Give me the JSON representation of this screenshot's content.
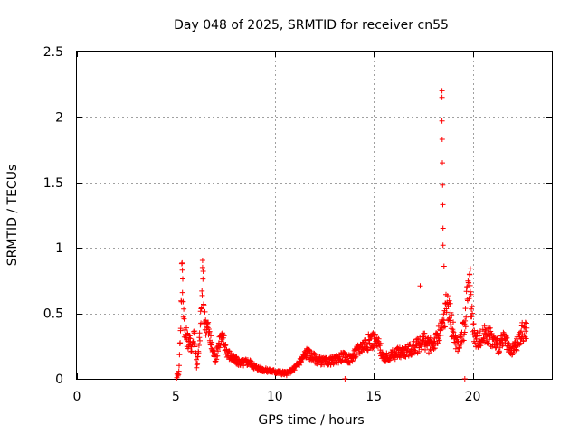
{
  "chart_data": {
    "type": "scatter",
    "title": "Day 048 of 2025, SRMTID for receiver cn55",
    "xlabel": "GPS time / hours",
    "ylabel": "SRMTID / TECUs",
    "xlim": [
      0,
      24
    ],
    "ylim": [
      0,
      2.5
    ],
    "x_ticks": [
      0,
      5,
      10,
      15,
      20
    ],
    "x_tick_labels": [
      "0",
      "5",
      "10",
      "15",
      "20"
    ],
    "y_ticks": [
      0,
      0.5,
      1,
      1.5,
      2,
      2.5
    ],
    "y_tick_labels": [
      "0",
      "0.5",
      "1",
      "1.5",
      "2",
      "2.5"
    ],
    "grid": true,
    "marker": "+",
    "color": "#ff0000",
    "series": [
      {
        "name": "SRMTID",
        "profile": [
          [
            5.05,
            0.02
          ],
          [
            5.15,
            0.05
          ],
          [
            5.25,
            0.45
          ],
          [
            5.3,
            0.8
          ],
          [
            5.35,
            0.7
          ],
          [
            5.45,
            0.35
          ],
          [
            5.6,
            0.3
          ],
          [
            5.8,
            0.25
          ],
          [
            5.95,
            0.35
          ],
          [
            6.05,
            0.1
          ],
          [
            6.15,
            0.2
          ],
          [
            6.3,
            0.55
          ],
          [
            6.35,
            0.8
          ],
          [
            6.45,
            0.45
          ],
          [
            6.6,
            0.4
          ],
          [
            6.8,
            0.25
          ],
          [
            7.0,
            0.15
          ],
          [
            7.2,
            0.3
          ],
          [
            7.4,
            0.3
          ],
          [
            7.6,
            0.2
          ],
          [
            7.9,
            0.15
          ],
          [
            8.3,
            0.12
          ],
          [
            8.7,
            0.13
          ],
          [
            9.0,
            0.09
          ],
          [
            9.4,
            0.07
          ],
          [
            9.8,
            0.06
          ],
          [
            10.2,
            0.05
          ],
          [
            10.6,
            0.04
          ],
          [
            11.0,
            0.08
          ],
          [
            11.3,
            0.14
          ],
          [
            11.6,
            0.2
          ],
          [
            11.9,
            0.17
          ],
          [
            12.2,
            0.14
          ],
          [
            12.6,
            0.13
          ],
          [
            13.0,
            0.14
          ],
          [
            13.4,
            0.17
          ],
          [
            13.8,
            0.15
          ],
          [
            14.1,
            0.2
          ],
          [
            14.4,
            0.25
          ],
          [
            14.7,
            0.28
          ],
          [
            15.0,
            0.3
          ],
          [
            15.3,
            0.25
          ],
          [
            15.5,
            0.15
          ],
          [
            15.9,
            0.18
          ],
          [
            16.3,
            0.2
          ],
          [
            16.8,
            0.22
          ],
          [
            17.2,
            0.25
          ],
          [
            17.5,
            0.3
          ],
          [
            17.8,
            0.25
          ],
          [
            18.2,
            0.3
          ],
          [
            18.5,
            0.4
          ],
          [
            18.7,
            0.6
          ],
          [
            18.9,
            0.45
          ],
          [
            19.1,
            0.3
          ],
          [
            19.3,
            0.25
          ],
          [
            19.6,
            0.4
          ],
          [
            19.8,
            0.75
          ],
          [
            19.9,
            0.6
          ],
          [
            20.1,
            0.3
          ],
          [
            20.4,
            0.3
          ],
          [
            20.7,
            0.35
          ],
          [
            21.0,
            0.3
          ],
          [
            21.3,
            0.25
          ],
          [
            21.6,
            0.3
          ],
          [
            21.9,
            0.2
          ],
          [
            22.2,
            0.25
          ],
          [
            22.5,
            0.35
          ],
          [
            22.75,
            0.38
          ]
        ],
        "peaks": [
          [
            5.33,
            0.83
          ],
          [
            6.35,
            0.85
          ],
          [
            17.35,
            0.71
          ],
          [
            18.45,
            2.2
          ],
          [
            18.45,
            2.15
          ],
          [
            18.45,
            1.97
          ],
          [
            18.46,
            1.83
          ],
          [
            18.47,
            1.65
          ],
          [
            18.48,
            1.48
          ],
          [
            18.49,
            1.33
          ],
          [
            18.5,
            1.15
          ],
          [
            18.5,
            1.02
          ],
          [
            18.55,
            0.86
          ],
          [
            19.88,
            0.84
          ],
          [
            13.55,
            0.0
          ],
          [
            19.6,
            0.0
          ]
        ]
      }
    ]
  }
}
